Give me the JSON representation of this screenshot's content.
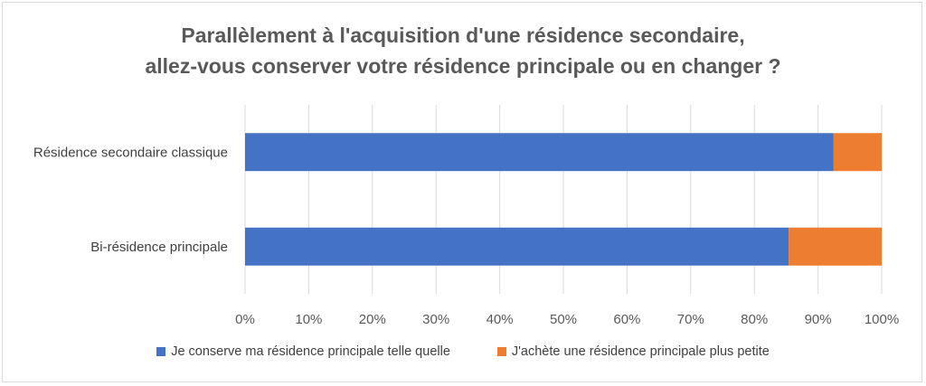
{
  "chart_data": {
    "type": "bar",
    "orientation": "horizontal",
    "stacked": "100%",
    "title": [
      "Parallèlement à l'acquisition d'une résidence secondaire,",
      "allez-vous conserver votre résidence principale ou en changer ?"
    ],
    "categories": [
      "Résidence secondaire classique",
      "Bi-résidence principale"
    ],
    "series": [
      {
        "name": "Je conserve ma résidence principale telle quelle",
        "color": "#4472c4",
        "values": [
          92.4,
          85.4
        ]
      },
      {
        "name": "J'achète une résidence principale plus petite",
        "color": "#ed7d31",
        "values": [
          7.6,
          14.6
        ]
      }
    ],
    "xlim": [
      0,
      100
    ],
    "x_ticks": [
      "0%",
      "10%",
      "20%",
      "30%",
      "40%",
      "50%",
      "60%",
      "70%",
      "80%",
      "90%",
      "100%"
    ],
    "grid": true,
    "legend_position": "bottom"
  }
}
